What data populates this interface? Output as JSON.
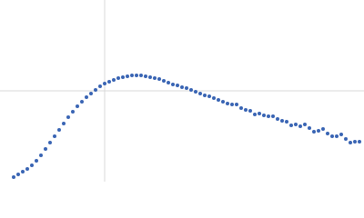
{
  "chart_data": {
    "type": "scatter",
    "color": "#3a65b4",
    "grid": true,
    "xlim": [
      0,
      400
    ],
    "ylim": [
      0,
      200
    ],
    "xticks": [
      115
    ],
    "yticks": [
      100
    ],
    "x": [
      15,
      20,
      25,
      30,
      35,
      40,
      45,
      50,
      55,
      60,
      65,
      70,
      75,
      80,
      85,
      90,
      95,
      100,
      105,
      110,
      115,
      120,
      125,
      130,
      135,
      140,
      145,
      150,
      155,
      160,
      165,
      170,
      175,
      180,
      185,
      190,
      195,
      200,
      205,
      210,
      215,
      220,
      225,
      230,
      235,
      240,
      245,
      250,
      255,
      260,
      265,
      270,
      275,
      280,
      285,
      290,
      295,
      300,
      305,
      310,
      315,
      320,
      325,
      330,
      335,
      340,
      345,
      350,
      355,
      360,
      365,
      370,
      375,
      380,
      385,
      390,
      395
    ],
    "values": [
      5,
      8,
      11,
      14,
      18,
      23,
      29,
      36,
      43,
      50,
      57,
      64,
      71,
      77,
      83,
      88,
      93,
      97,
      101,
      105,
      108,
      110,
      112,
      114,
      115,
      116,
      117,
      117,
      117,
      116,
      115,
      114,
      113,
      111,
      109,
      107,
      106,
      104,
      103,
      101,
      99,
      97,
      95,
      94,
      92,
      90,
      88,
      86,
      85,
      85,
      81,
      79,
      78,
      74,
      75,
      73,
      72,
      72,
      69,
      67,
      66,
      62,
      63,
      61,
      63,
      59,
      55,
      56,
      58,
      53,
      50,
      50,
      52,
      47,
      43,
      44,
      44
    ]
  }
}
